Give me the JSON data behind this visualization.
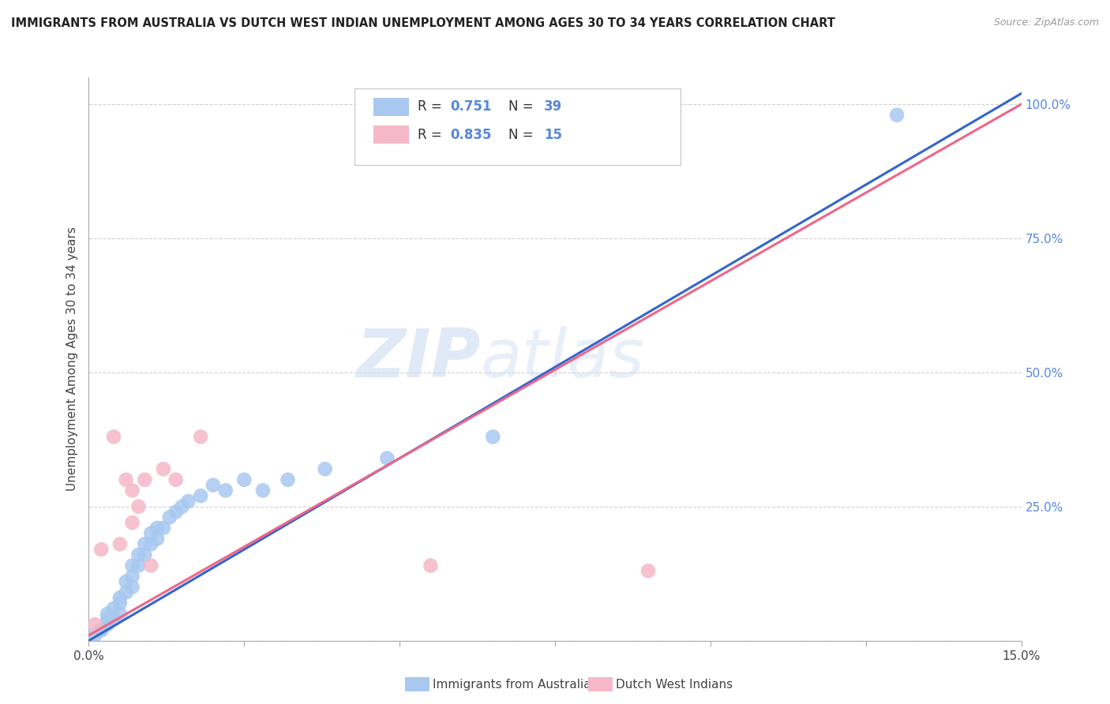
{
  "title": "IMMIGRANTS FROM AUSTRALIA VS DUTCH WEST INDIAN UNEMPLOYMENT AMONG AGES 30 TO 34 YEARS CORRELATION CHART",
  "source": "Source: ZipAtlas.com",
  "ylabel": "Unemployment Among Ages 30 to 34 years",
  "xlim": [
    0.0,
    0.15
  ],
  "ylim": [
    0.0,
    1.05
  ],
  "xticks": [
    0.0,
    0.025,
    0.05,
    0.075,
    0.1,
    0.125,
    0.15
  ],
  "xticklabels": [
    "0.0%",
    "",
    "",
    "",
    "",
    "",
    "15.0%"
  ],
  "yticks": [
    0.0,
    0.25,
    0.5,
    0.75,
    1.0
  ],
  "yticklabels": [
    "",
    "25.0%",
    "50.0%",
    "75.0%",
    "100.0%"
  ],
  "blue_R": "0.751",
  "blue_N": "39",
  "pink_R": "0.835",
  "pink_N": "15",
  "blue_color": "#a8c8f0",
  "pink_color": "#f5b8c8",
  "blue_line_color": "#3366cc",
  "pink_line_color": "#ee6688",
  "legend_blue_label": "Immigrants from Australia",
  "legend_pink_label": "Dutch West Indians",
  "watermark_zip": "ZIP",
  "watermark_atlas": "atlas",
  "background_color": "#ffffff",
  "grid_color": "#cccccc",
  "tick_label_color": "#5588dd",
  "text_color": "#444444",
  "blue_scatter_x": [
    0.001,
    0.002,
    0.002,
    0.003,
    0.003,
    0.003,
    0.004,
    0.004,
    0.005,
    0.005,
    0.005,
    0.006,
    0.006,
    0.007,
    0.007,
    0.007,
    0.008,
    0.008,
    0.009,
    0.009,
    0.01,
    0.01,
    0.011,
    0.011,
    0.012,
    0.013,
    0.014,
    0.015,
    0.016,
    0.018,
    0.02,
    0.022,
    0.025,
    0.028,
    0.032,
    0.038,
    0.048,
    0.065,
    0.13
  ],
  "blue_scatter_y": [
    0.01,
    0.02,
    0.02,
    0.03,
    0.04,
    0.05,
    0.04,
    0.06,
    0.05,
    0.07,
    0.08,
    0.09,
    0.11,
    0.1,
    0.12,
    0.14,
    0.14,
    0.16,
    0.16,
    0.18,
    0.18,
    0.2,
    0.19,
    0.21,
    0.21,
    0.23,
    0.24,
    0.25,
    0.26,
    0.27,
    0.29,
    0.28,
    0.3,
    0.28,
    0.3,
    0.32,
    0.34,
    0.38,
    0.98
  ],
  "pink_scatter_x": [
    0.001,
    0.002,
    0.004,
    0.005,
    0.006,
    0.007,
    0.007,
    0.008,
    0.009,
    0.01,
    0.012,
    0.014,
    0.018,
    0.055,
    0.09
  ],
  "pink_scatter_y": [
    0.03,
    0.17,
    0.38,
    0.18,
    0.3,
    0.22,
    0.28,
    0.25,
    0.3,
    0.14,
    0.32,
    0.3,
    0.38,
    0.14,
    0.13
  ],
  "blue_trend_x": [
    0.0,
    0.15
  ],
  "blue_trend_y": [
    0.0,
    1.02
  ],
  "pink_trend_x": [
    0.0,
    0.15
  ],
  "pink_trend_y": [
    0.01,
    1.0
  ]
}
